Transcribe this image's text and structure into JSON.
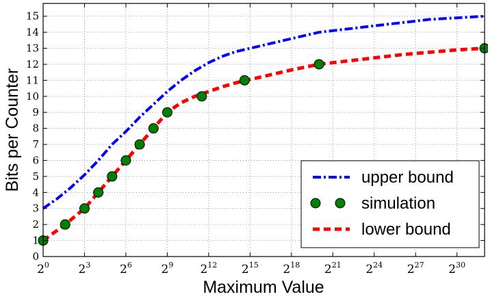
{
  "chart_data": {
    "type": "line",
    "title": "",
    "xlabel": "Maximum Value",
    "ylabel": "Bits per Counter",
    "x_scale": "log2",
    "x_exponent_range": [
      0,
      32
    ],
    "ylim": [
      0,
      15.8
    ],
    "x_tick_exponents": [
      0,
      3,
      6,
      9,
      12,
      15,
      18,
      21,
      24,
      27,
      30
    ],
    "x_tick_base": "2",
    "y_ticks": [
      0,
      1,
      2,
      3,
      4,
      5,
      6,
      7,
      8,
      9,
      10,
      11,
      12,
      13,
      14,
      15
    ],
    "grid": true,
    "legend_position": "bottom-right",
    "series": [
      {
        "name": "upper bound",
        "style": "dash-dot",
        "color": "#0000ff",
        "x_exponents": [
          0,
          1,
          2,
          3,
          4,
          5,
          6,
          7,
          8,
          9,
          10,
          11,
          12,
          13,
          14,
          15,
          16,
          17,
          18,
          19,
          20,
          21,
          22,
          23,
          24,
          25,
          26,
          27,
          28,
          29,
          30,
          31,
          32
        ],
        "values": [
          3,
          3.6,
          4.3,
          5.1,
          6.0,
          7.0,
          7.8,
          8.7,
          9.5,
          10.3,
          11.0,
          11.6,
          12.1,
          12.5,
          12.8,
          13.0,
          13.2,
          13.4,
          13.6,
          13.8,
          14.0,
          14.1,
          14.2,
          14.3,
          14.4,
          14.5,
          14.6,
          14.7,
          14.8,
          14.85,
          14.9,
          14.95,
          15.0
        ]
      },
      {
        "name": "simulation",
        "style": "markers",
        "color": "#008000",
        "x_exponents": [
          0,
          1.6,
          3.0,
          4.0,
          5.0,
          6.0,
          7.0,
          8.0,
          9.0,
          11.5,
          14.6,
          20.0,
          32.0
        ],
        "values": [
          1,
          2,
          3,
          4,
          5,
          6,
          7,
          8,
          9,
          10,
          11,
          12,
          13
        ]
      },
      {
        "name": "lower bound",
        "style": "dashed",
        "color": "#ff0000",
        "x_exponents": [
          0,
          1.6,
          3.0,
          4.0,
          5.0,
          6.0,
          7.0,
          8.0,
          9.0,
          10.0,
          11.0,
          12.0,
          13.0,
          14.0,
          15.0,
          16.0,
          17.0,
          18.0,
          20.0,
          22.0,
          24.0,
          26.0,
          28.0,
          30.0,
          32.0
        ],
        "values": [
          1,
          2,
          3,
          4,
          5,
          6,
          7,
          8,
          9,
          9.6,
          10.0,
          10.3,
          10.6,
          10.85,
          11.05,
          11.25,
          11.45,
          11.65,
          12.0,
          12.2,
          12.4,
          12.6,
          12.75,
          12.9,
          13.0
        ]
      }
    ]
  }
}
